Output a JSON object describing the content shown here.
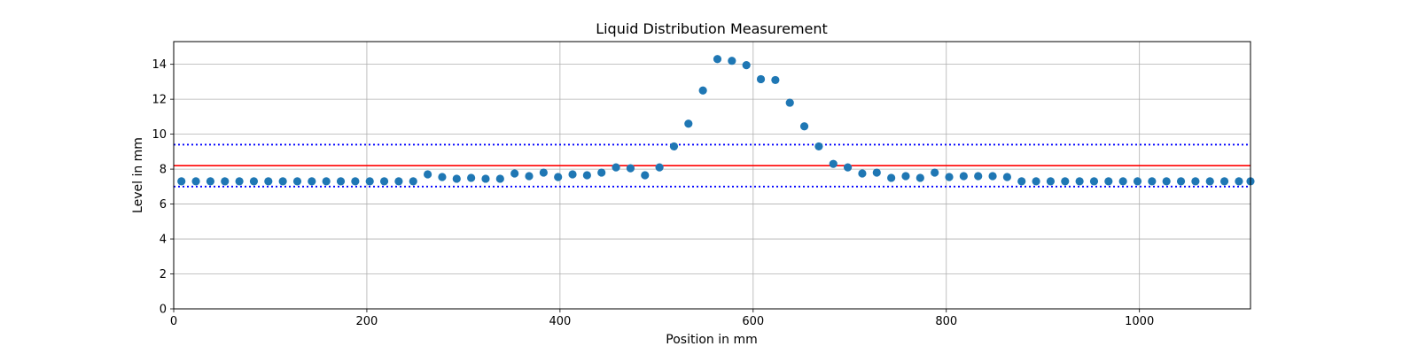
{
  "chart_data": {
    "type": "scatter",
    "title": "Liquid Distribution Measurement",
    "xlabel": "Position in mm",
    "ylabel": "Level in mm",
    "xlim": [
      0,
      1115
    ],
    "ylim": [
      0,
      15.3
    ],
    "x_ticks": [
      0,
      200,
      400,
      600,
      800,
      1000
    ],
    "y_ticks": [
      0,
      2,
      4,
      6,
      8,
      10,
      12,
      14
    ],
    "grid": true,
    "point_color": "#1f77b4",
    "series": [
      {
        "x": [
          8,
          23,
          38,
          53,
          68,
          83,
          98,
          113,
          128,
          143,
          158,
          173,
          188,
          203,
          218,
          233,
          248,
          263,
          278,
          293,
          308,
          323,
          338,
          353,
          368,
          383,
          398,
          413,
          428,
          443,
          458,
          473,
          488,
          503,
          518,
          533,
          548,
          563,
          578,
          593,
          608,
          623,
          638,
          653,
          668,
          683,
          698,
          713,
          728,
          743,
          758,
          773,
          788,
          803,
          818,
          833,
          848,
          863,
          878,
          893,
          908,
          923,
          938,
          953,
          968,
          983,
          998,
          1013,
          1028,
          1043,
          1058,
          1073,
          1088,
          1103,
          1115
        ],
        "y": [
          7.3,
          7.3,
          7.3,
          7.3,
          7.3,
          7.3,
          7.3,
          7.3,
          7.3,
          7.3,
          7.3,
          7.3,
          7.3,
          7.3,
          7.3,
          7.3,
          7.3,
          7.7,
          7.55,
          7.45,
          7.5,
          7.45,
          7.45,
          7.75,
          7.6,
          7.8,
          7.55,
          7.7,
          7.65,
          7.8,
          8.1,
          8.05,
          7.65,
          8.1,
          9.3,
          10.6,
          12.5,
          14.3,
          14.2,
          13.95,
          13.15,
          13.1,
          11.8,
          10.45,
          9.3,
          8.3,
          8.1,
          7.75,
          7.8,
          7.5,
          7.6,
          7.5,
          7.8,
          7.55,
          7.6,
          7.6,
          7.6,
          7.55,
          7.3,
          7.3,
          7.3,
          7.3,
          7.3,
          7.3,
          7.3,
          7.3,
          7.3,
          7.3,
          7.3,
          7.3,
          7.3,
          7.3,
          7.3,
          7.3,
          7.3
        ]
      }
    ],
    "reference_lines": [
      {
        "y": 8.2,
        "style": "solid",
        "color": "#ff0000"
      },
      {
        "y": 9.4,
        "style": "dotted",
        "color": "#0000ff"
      },
      {
        "y": 7.0,
        "style": "dotted",
        "color": "#0000ff"
      }
    ]
  }
}
